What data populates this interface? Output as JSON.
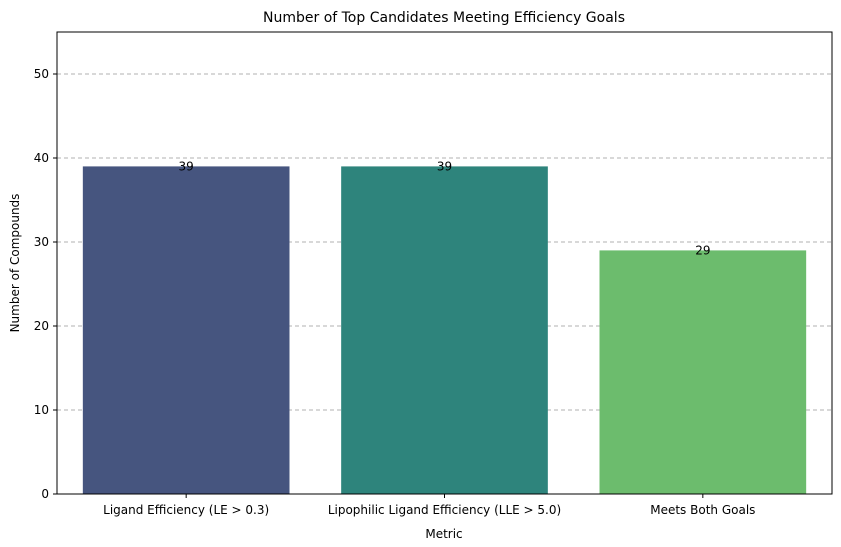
{
  "chart_data": {
    "type": "bar",
    "title": "Number of Top Candidates Meeting Efficiency Goals",
    "xlabel": "Metric",
    "ylabel": "Number of Compounds",
    "categories": [
      "Ligand Efficiency (LE > 0.3)",
      "Lipophilic Ligand Efficiency (LLE > 5.0)",
      "Meets Both Goals"
    ],
    "values": [
      39,
      39,
      29
    ],
    "data_labels": [
      "39",
      "39",
      "29"
    ],
    "colors": [
      "#46557f",
      "#2e847c",
      "#6cbc6d"
    ],
    "ylim": [
      0,
      55
    ],
    "yticks": [
      0,
      10,
      20,
      30,
      40,
      50
    ],
    "ytick_labels": [
      "0",
      "10",
      "20",
      "30",
      "40",
      "50"
    ],
    "grid": "y-dashed",
    "legend": "none"
  }
}
